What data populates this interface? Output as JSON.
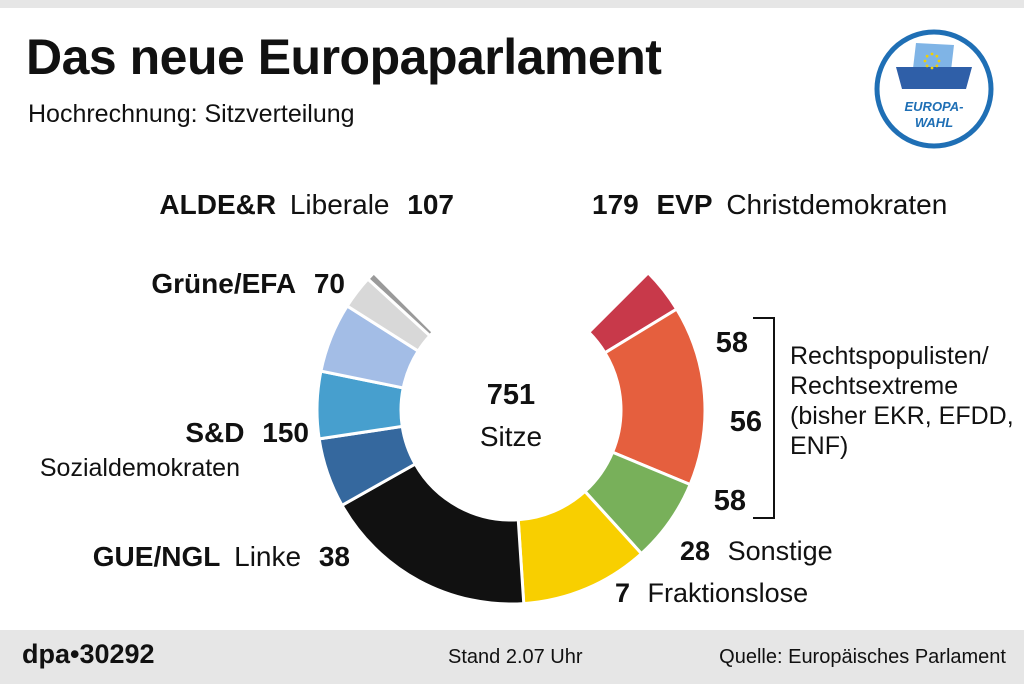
{
  "header": {
    "title": "Das neue Europaparlament",
    "subtitle": "Hochrechnung: Sitzverteilung"
  },
  "logo": {
    "icon": "ballot-box-icon",
    "line1": "EUROPA-",
    "line2": "WAHL",
    "colors": {
      "ring": "#1f6fb5",
      "box": "#2f5fa8",
      "star": "#f2d100"
    }
  },
  "chart_data": {
    "type": "pie",
    "variant": "semicircle-donut",
    "total": 751,
    "total_label": "Sitze",
    "slices": [
      {
        "name": "GUE/NGL",
        "label": "Linke",
        "value": 38,
        "color": "#c8394a"
      },
      {
        "name": "S&D",
        "label": "Sozialdemokraten",
        "value": 150,
        "color": "#e55f3e"
      },
      {
        "name": "Grüne/EFA",
        "label": "",
        "value": 70,
        "color": "#78b05a"
      },
      {
        "name": "ALDE&R",
        "label": "Liberale",
        "value": 107,
        "color": "#f8cf00"
      },
      {
        "name": "EVP",
        "label": "Christdemokraten",
        "value": 179,
        "color": "#111111"
      },
      {
        "name": "",
        "label": "",
        "value": 58,
        "color": "#35689e"
      },
      {
        "name": "",
        "label": "",
        "value": 56,
        "color": "#479fce"
      },
      {
        "name": "",
        "label": "",
        "value": 58,
        "color": "#a3bde6"
      },
      {
        "name": "",
        "label": "Sonstige",
        "value": 28,
        "color": "#d8d8d8"
      },
      {
        "name": "",
        "label": "Fraktionslose",
        "value": 7,
        "color": "#9a9a9a"
      }
    ],
    "bracket_label": [
      "Rechtspopulisten/",
      "Rechtsextreme",
      "(bisher EKR, EFDD,",
      "ENF)"
    ]
  },
  "footer": {
    "code": "dpa•30292",
    "stand": "Stand 2.07 Uhr",
    "source": "Quelle: Europäisches Parlament"
  }
}
